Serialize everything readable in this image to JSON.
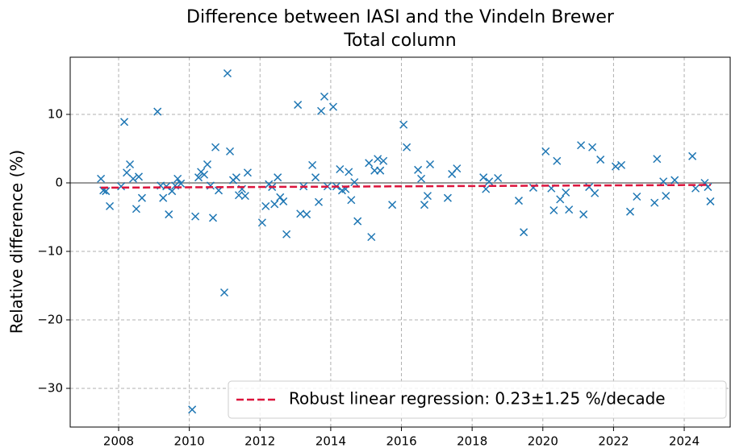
{
  "chart_data": {
    "type": "scatter",
    "title": [
      "Difference between IASI and the Vindeln Brewer",
      "Total column"
    ],
    "ylabel": "Relative difference (%)",
    "xlim": [
      2006.63,
      2025.3
    ],
    "ylim": [
      -35.65,
      18.35
    ],
    "xticks": [
      2008,
      2010,
      2012,
      2014,
      2016,
      2018,
      2020,
      2022,
      2024
    ],
    "yticks": [
      {
        "value": -30,
        "label": "−30"
      },
      {
        "value": -20,
        "label": "−20"
      },
      {
        "value": -10,
        "label": "−10"
      },
      0,
      10
    ],
    "grid": true,
    "hline": 0,
    "legend": "lower right",
    "series": [
      {
        "color": "#1f77b4",
        "marker": "x",
        "x": [
          2007.5,
          2007.57,
          2007.64,
          2007.75,
          2008.07,
          2008.16,
          2008.23,
          2008.32,
          2008.41,
          2008.5,
          2008.57,
          2008.66,
          2009.1,
          2009.19,
          2009.26,
          2009.35,
          2009.42,
          2009.51,
          2009.6,
          2009.67,
          2009.76,
          2010.08,
          2010.17,
          2010.26,
          2010.33,
          2010.42,
          2010.51,
          2010.6,
          2010.67,
          2010.74,
          2010.83,
          2010.99,
          2011.08,
          2011.15,
          2011.24,
          2011.33,
          2011.4,
          2011.49,
          2011.58,
          2011.65,
          2012.06,
          2012.16,
          2012.25,
          2012.34,
          2012.41,
          2012.5,
          2012.57,
          2012.66,
          2012.75,
          2013.07,
          2013.14,
          2013.23,
          2013.32,
          2013.48,
          2013.57,
          2013.66,
          2013.73,
          2013.82,
          2013.91,
          2014.07,
          2014.16,
          2014.26,
          2014.32,
          2014.42,
          2014.51,
          2014.58,
          2014.67,
          2014.76,
          2015.08,
          2015.15,
          2015.24,
          2015.33,
          2015.4,
          2015.49,
          2015.74,
          2016.06,
          2016.15,
          2016.47,
          2016.56,
          2016.65,
          2016.74,
          2016.81,
          2017.31,
          2017.43,
          2017.57,
          2018.32,
          2018.39,
          2018.48,
          2018.73,
          2019.32,
          2019.46,
          2019.73,
          2020.08,
          2020.24,
          2020.31,
          2020.4,
          2020.49,
          2020.65,
          2020.74,
          2021.08,
          2021.15,
          2021.31,
          2021.4,
          2021.47,
          2021.63,
          2022.06,
          2022.22,
          2022.47,
          2022.66,
          2023.16,
          2023.23,
          2023.41,
          2023.48,
          2023.73,
          2024.23,
          2024.32,
          2024.58,
          2024.67,
          2024.74
        ],
        "values": [
          0.6,
          -1.1,
          -1.2,
          -3.4,
          -0.5,
          8.9,
          1.5,
          2.7,
          0.6,
          -3.8,
          0.9,
          -2.2,
          10.4,
          -0.4,
          -2.2,
          -0.5,
          -4.6,
          -1.2,
          -0.4,
          0.6,
          -0.1,
          -33.1,
          -4.9,
          0.8,
          1.6,
          1.2,
          2.7,
          -0.4,
          -5.1,
          5.2,
          -1.1,
          -16.0,
          16.0,
          4.6,
          0.4,
          0.8,
          -1.8,
          -0.9,
          -1.9,
          1.5,
          -5.8,
          -3.4,
          -0.2,
          -0.6,
          -3.1,
          0.8,
          -2.1,
          -2.7,
          -7.5,
          11.4,
          -4.5,
          -0.5,
          -4.6,
          2.6,
          0.8,
          -2.8,
          10.5,
          12.6,
          -0.5,
          11.1,
          -0.5,
          2.0,
          -1.1,
          -0.9,
          1.6,
          -2.5,
          0.1,
          -5.6,
          2.9,
          -7.9,
          1.8,
          3.5,
          1.8,
          3.2,
          -3.2,
          8.5,
          5.2,
          1.9,
          0.6,
          -3.2,
          -1.9,
          2.7,
          -2.2,
          1.3,
          2.1,
          0.8,
          -0.9,
          0.2,
          0.7,
          -2.6,
          -7.2,
          -0.7,
          4.6,
          -0.8,
          -4.0,
          3.2,
          -2.4,
          -1.4,
          -3.9,
          5.5,
          -4.6,
          -0.6,
          5.2,
          -1.5,
          3.4,
          2.4,
          2.6,
          -4.2,
          -2.0,
          -2.9,
          3.5,
          0.2,
          -1.9,
          0.4,
          3.9,
          -0.8,
          0.0,
          -0.6,
          -2.7
        ]
      },
      {
        "name": "Robust linear regression: 0.23±1.25 %/decade",
        "color": "#dc143c",
        "style": "dashed",
        "x": [
          2007.5,
          2024.75
        ],
        "values": [
          -0.7,
          -0.3
        ]
      }
    ]
  }
}
